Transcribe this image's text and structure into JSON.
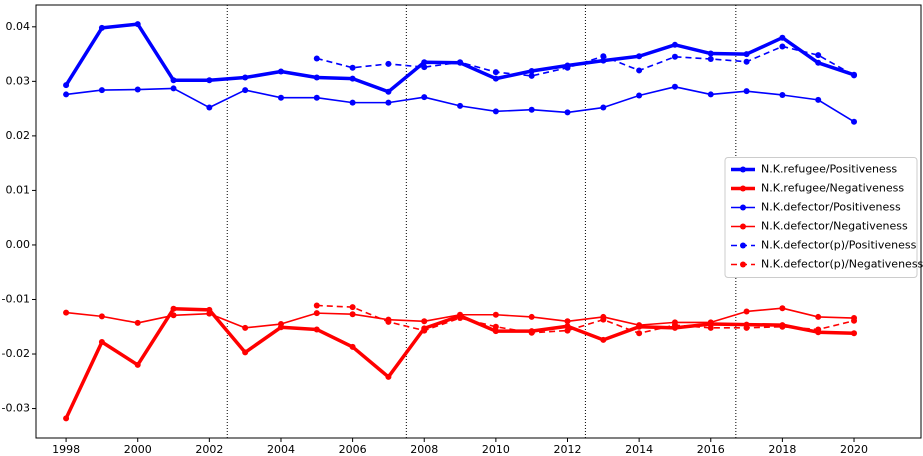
{
  "chart_data": {
    "type": "line",
    "x": [
      1998,
      1999,
      2000,
      2001,
      2002,
      2003,
      2004,
      2005,
      2006,
      2007,
      2008,
      2009,
      2010,
      2011,
      2012,
      2013,
      2014,
      2015,
      2016,
      2017,
      2018,
      2019,
      2020
    ],
    "xlim": [
      1997.16,
      2021.87
    ],
    "xticks": [
      1998,
      2000,
      2002,
      2004,
      2006,
      2008,
      2010,
      2012,
      2014,
      2016,
      2018,
      2020
    ],
    "ylim": [
      -0.0354,
      0.044
    ],
    "yticks": [
      0.04,
      0.03,
      0.02,
      0.01,
      {
        "value": 0,
        "label": "0.00"
      },
      -0.01,
      -0.02,
      -0.03
    ],
    "vlines": [
      2002.5,
      2007.5,
      2012.5,
      2016.7
    ],
    "legend": "center right",
    "series": [
      {
        "name": "N.K.refugee/Positiveness",
        "color": "#0000ff",
        "width": 3.5,
        "dashed": false,
        "values": [
          0.0293,
          0.0398,
          0.0405,
          0.0302,
          0.0302,
          0.0307,
          0.0318,
          0.0307,
          0.0305,
          0.0281,
          0.0335,
          0.0334,
          0.0305,
          0.0319,
          0.0329,
          0.0338,
          0.0346,
          0.0367,
          0.0351,
          0.035,
          0.038,
          0.0334,
          0.0312
        ]
      },
      {
        "name": "N.K.refugee/Negativeness",
        "color": "#ff0000",
        "width": 3.5,
        "dashed": false,
        "values": [
          -0.0318,
          -0.0178,
          -0.022,
          -0.0117,
          -0.0119,
          -0.0197,
          -0.0151,
          -0.0155,
          -0.0187,
          -0.0242,
          -0.0153,
          -0.013,
          -0.0158,
          -0.0158,
          -0.0149,
          -0.0174,
          -0.015,
          -0.0152,
          -0.0145,
          -0.0146,
          -0.0147,
          -0.016,
          -0.0162
        ]
      },
      {
        "name": "N.K.defector/Positiveness",
        "color": "#0000ff",
        "width": 1.6,
        "dashed": false,
        "values": [
          0.0276,
          0.0284,
          0.0285,
          0.0287,
          0.0252,
          0.0284,
          0.027,
          0.027,
          0.0261,
          0.0261,
          0.0271,
          0.0255,
          0.0245,
          0.0248,
          0.0243,
          0.0252,
          0.0274,
          0.029,
          0.0276,
          0.0282,
          0.0275,
          0.0266,
          0.0226
        ]
      },
      {
        "name": "N.K.defector/Negativeness",
        "color": "#ff0000",
        "width": 1.6,
        "dashed": false,
        "values": [
          -0.0124,
          -0.0131,
          -0.0143,
          -0.0129,
          -0.0126,
          -0.0152,
          -0.0145,
          -0.0125,
          -0.0127,
          -0.0137,
          -0.014,
          -0.0128,
          -0.0128,
          -0.0132,
          -0.014,
          -0.0132,
          -0.0147,
          -0.0142,
          -0.0142,
          -0.0122,
          -0.0116,
          -0.0132,
          -0.0134
        ]
      },
      {
        "name": "N.K.defector(p)/Positiveness",
        "color": "#0000ff",
        "width": 1.6,
        "dashed": true,
        "values": [
          null,
          null,
          null,
          null,
          null,
          null,
          null,
          0.0342,
          0.0325,
          0.0332,
          0.0326,
          0.0335,
          0.0317,
          0.031,
          0.0325,
          0.0346,
          0.032,
          0.0345,
          0.0341,
          0.0336,
          0.0364,
          0.0348,
          0.0311
        ]
      },
      {
        "name": "N.K.defector(p)/Negativeness",
        "color": "#ff0000",
        "width": 1.6,
        "dashed": true,
        "values": [
          null,
          null,
          null,
          null,
          null,
          null,
          null,
          -0.0111,
          -0.0114,
          -0.0141,
          -0.0157,
          -0.0134,
          -0.015,
          -0.0161,
          -0.0157,
          -0.0137,
          -0.0162,
          -0.0147,
          -0.0152,
          -0.0152,
          -0.015,
          -0.0155,
          -0.0139
        ]
      }
    ]
  }
}
